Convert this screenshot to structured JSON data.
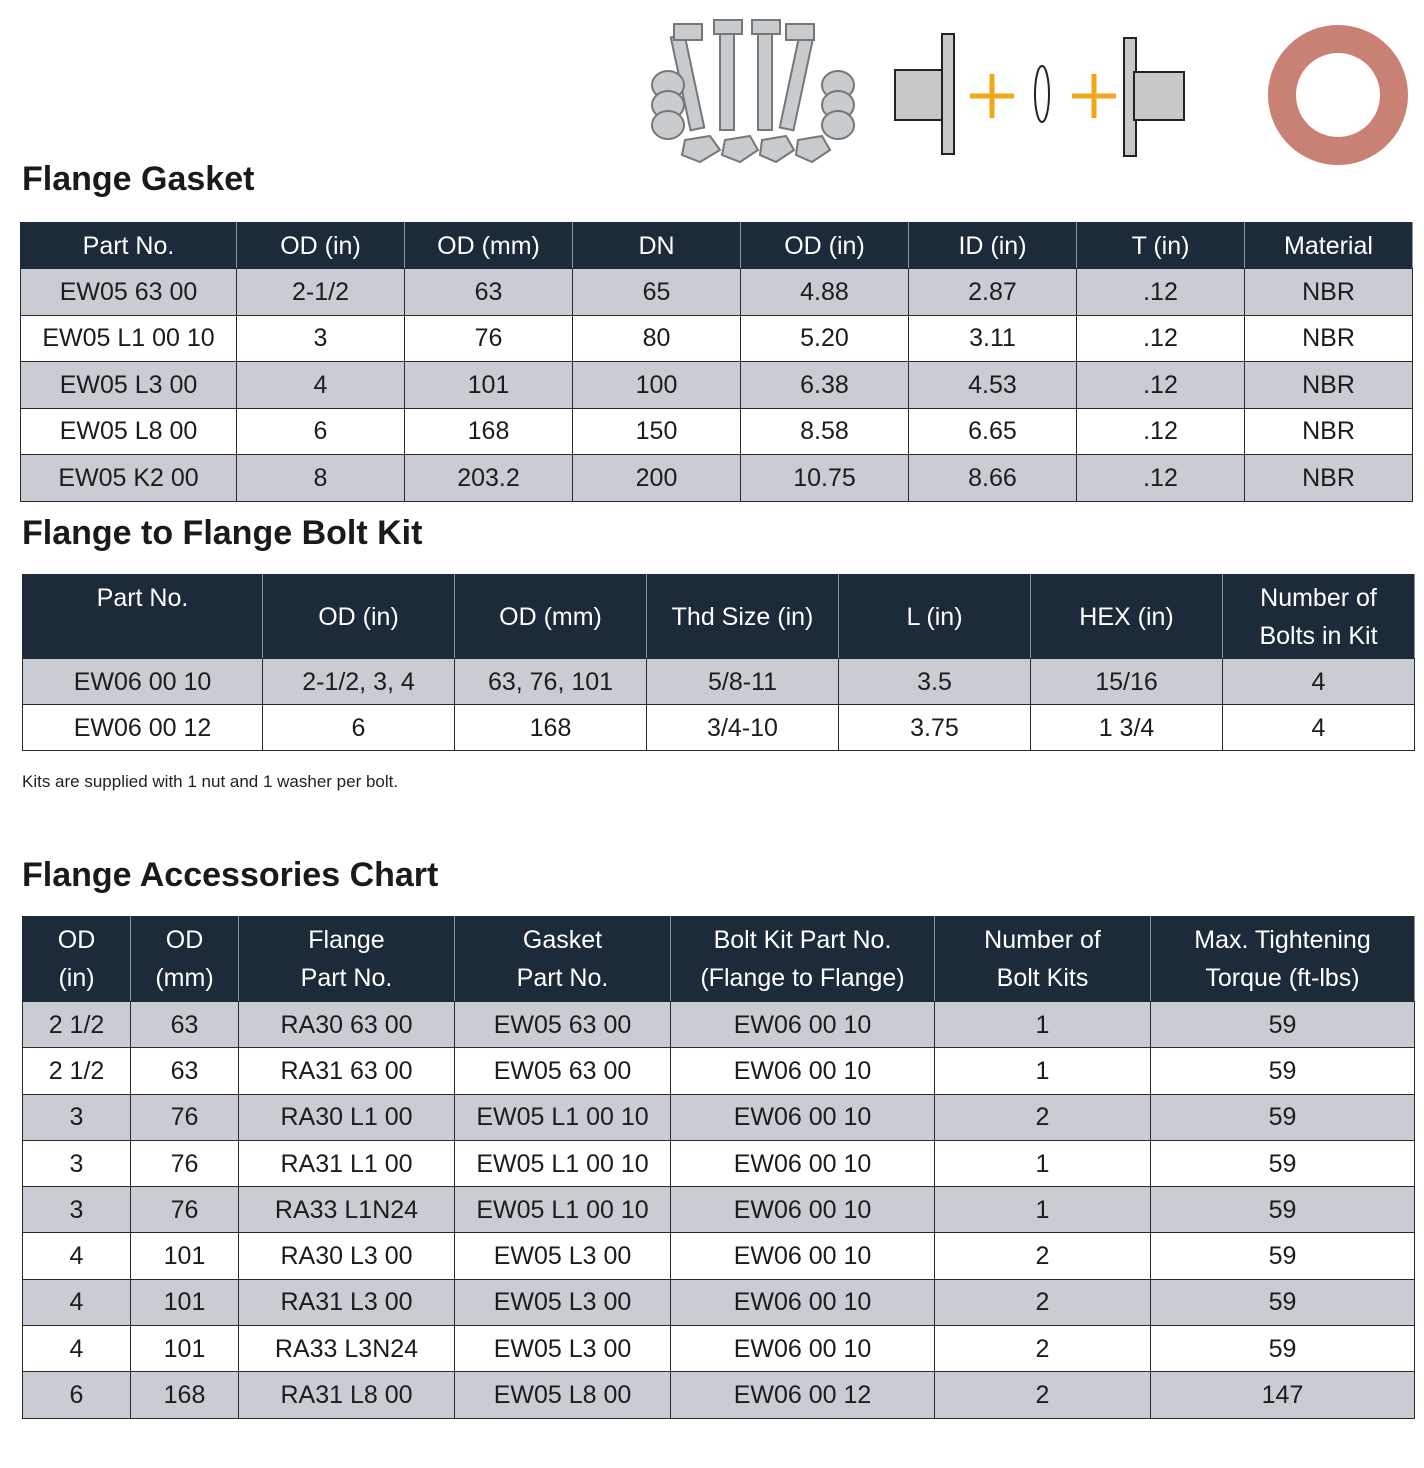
{
  "sections": [
    {
      "title": "Flange Gasket",
      "table": {
        "header": [
          "Part No.",
          "OD (in)",
          "OD (mm)",
          "DN",
          "OD (in)",
          "ID (in)",
          "T (in)",
          "Material"
        ],
        "rows": [
          [
            "EW05 63 00",
            "2-1/2",
            "63",
            "65",
            "4.88",
            "2.87",
            ".12",
            "NBR"
          ],
          [
            "EW05 L1 00 10",
            "3",
            "76",
            "80",
            "5.20",
            "3.11",
            ".12",
            "NBR"
          ],
          [
            "EW05 L3 00",
            "4",
            "101",
            "100",
            "6.38",
            "4.53",
            ".12",
            "NBR"
          ],
          [
            "EW05 L8 00",
            "6",
            "168",
            "150",
            "8.58",
            "6.65",
            ".12",
            "NBR"
          ],
          [
            "EW05 K2 00",
            "8",
            "203.2",
            "200",
            "10.75",
            "8.66",
            ".12",
            "NBR"
          ]
        ]
      }
    },
    {
      "title": "Flange to Flange Bolt Kit",
      "table": {
        "header": [
          "Part No.",
          "OD (in)",
          "OD (mm)",
          "Thd Size (in)",
          "L (in)",
          "HEX (in)",
          "Number of\nBolts in Kit"
        ],
        "rows": [
          [
            "EW06 00 10",
            "2-1/2, 3, 4",
            "63, 76, 101",
            "5/8-11",
            "3.5",
            "15/16",
            "4"
          ],
          [
            "EW06 00 12",
            "6",
            "168",
            "3/4-10",
            "3.75",
            "1 3/4",
            "4"
          ]
        ]
      },
      "note": "Kits are supplied with 1 nut and 1 washer per bolt."
    },
    {
      "title": "Flange Accessories Chart",
      "table": {
        "header": [
          "OD\n(in)",
          "OD\n(mm)",
          "Flange\nPart No.",
          "Gasket\nPart No.",
          "Bolt Kit Part No.\n(Flange to Flange)",
          "Number of\nBolt Kits",
          "Max. Tightening\nTorque (ft-lbs)"
        ],
        "rows": [
          [
            "2 1/2",
            "63",
            "RA30 63 00",
            "EW05 63 00",
            "EW06 00 10",
            "1",
            "59"
          ],
          [
            "2 1/2",
            "63",
            "RA31 63 00",
            "EW05 63 00",
            "EW06 00 10",
            "1",
            "59"
          ],
          [
            "3",
            "76",
            "RA30 L1 00",
            "EW05 L1 00 10",
            "EW06 00 10",
            "2",
            "59"
          ],
          [
            "3",
            "76",
            "RA31 L1 00",
            "EW05 L1 00 10",
            "EW06 00 10",
            "1",
            "59"
          ],
          [
            "3",
            "76",
            "RA33 L1N24",
            "EW05 L1 00 10",
            "EW06 00 10",
            "1",
            "59"
          ],
          [
            "4",
            "101",
            "RA30 L3 00",
            "EW05 L3 00",
            "EW06 00 10",
            "2",
            "59"
          ],
          [
            "4",
            "101",
            "RA31 L3 00",
            "EW05 L3 00",
            "EW06 00 10",
            "2",
            "59"
          ],
          [
            "4",
            "101",
            "RA33 L3N24",
            "EW05 L3 00",
            "EW06 00 10",
            "2",
            "59"
          ],
          [
            "6",
            "168",
            "RA31 L8 00",
            "EW05 L8 00",
            "EW06 00 12",
            "2",
            "147"
          ]
        ]
      }
    }
  ]
}
